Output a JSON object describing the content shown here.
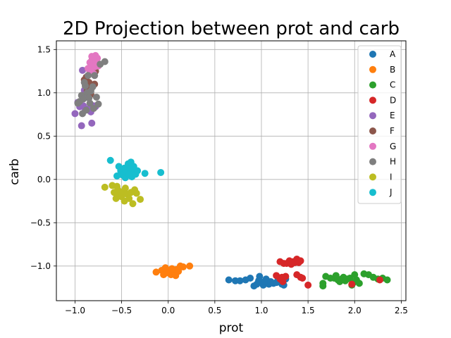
{
  "chart_data": {
    "type": "scatter",
    "title": "2D Projection between prot and carb",
    "xlabel": "prot",
    "ylabel": "carb",
    "xlim": [
      -1.2,
      2.55
    ],
    "ylim": [
      -1.4,
      1.6
    ],
    "xticks": [
      -1.0,
      -0.5,
      0.0,
      0.5,
      1.0,
      1.5,
      2.0,
      2.5
    ],
    "xtick_labels": [
      "−1.0",
      "−0.5",
      "0.0",
      "0.5",
      "1.0",
      "1.5",
      "2.0",
      "2.5"
    ],
    "yticks": [
      -1.0,
      -0.5,
      0.0,
      0.5,
      1.0,
      1.5
    ],
    "ytick_labels": [
      "−1.0",
      "−0.5",
      "0.0",
      "0.5",
      "1.0",
      "1.5"
    ],
    "grid": true,
    "legend_position": "top-right",
    "series": [
      {
        "name": "A",
        "color": "#1f77b4",
        "points": [
          [
            0.65,
            -1.16
          ],
          [
            0.72,
            -1.17
          ],
          [
            0.77,
            -1.17
          ],
          [
            0.83,
            -1.16
          ],
          [
            0.88,
            -1.14
          ],
          [
            0.92,
            -1.23
          ],
          [
            0.95,
            -1.21
          ],
          [
            0.98,
            -1.12
          ],
          [
            1.0,
            -1.19
          ],
          [
            1.02,
            -1.22
          ],
          [
            1.05,
            -1.15
          ],
          [
            1.08,
            -1.21
          ],
          [
            1.1,
            -1.18
          ],
          [
            1.13,
            -1.2
          ],
          [
            1.16,
            -1.19
          ],
          [
            1.18,
            -1.15
          ],
          [
            1.2,
            -1.17
          ],
          [
            1.22,
            -1.21
          ],
          [
            1.24,
            -1.22
          ],
          [
            1.26,
            -1.15
          ],
          [
            1.03,
            -1.18
          ],
          [
            0.97,
            -1.17
          ]
        ]
      },
      {
        "name": "B",
        "color": "#ff7f0e",
        "points": [
          [
            -0.13,
            -1.07
          ],
          [
            -0.07,
            -1.05
          ],
          [
            -0.05,
            -1.1
          ],
          [
            -0.03,
            -1.02
          ],
          [
            -0.01,
            -1.05
          ],
          [
            0.01,
            -1.07
          ],
          [
            0.03,
            -1.1
          ],
          [
            0.05,
            -1.06
          ],
          [
            0.07,
            -1.09
          ],
          [
            0.09,
            -1.04
          ],
          [
            0.11,
            -1.06
          ],
          [
            0.13,
            -1.0
          ],
          [
            0.16,
            -1.01
          ],
          [
            0.23,
            -1.0
          ],
          [
            0.04,
            -1.03
          ],
          [
            -0.02,
            -1.08
          ],
          [
            0.08,
            -1.11
          ]
        ]
      },
      {
        "name": "C",
        "color": "#2ca02c",
        "points": [
          [
            1.66,
            -1.2
          ],
          [
            1.69,
            -1.12
          ],
          [
            1.74,
            -1.14
          ],
          [
            1.78,
            -1.14
          ],
          [
            1.8,
            -1.11
          ],
          [
            1.82,
            -1.16
          ],
          [
            1.84,
            -1.18
          ],
          [
            1.86,
            -1.15
          ],
          [
            1.88,
            -1.13
          ],
          [
            1.9,
            -1.17
          ],
          [
            1.92,
            -1.15
          ],
          [
            1.95,
            -1.14
          ],
          [
            1.98,
            -1.2
          ],
          [
            2.0,
            -1.1
          ],
          [
            2.02,
            -1.16
          ],
          [
            2.05,
            -1.2
          ],
          [
            2.1,
            -1.09
          ],
          [
            2.15,
            -1.1
          ],
          [
            2.2,
            -1.13
          ],
          [
            2.25,
            -1.15
          ],
          [
            2.3,
            -1.14
          ],
          [
            2.35,
            -1.16
          ],
          [
            1.66,
            -1.23
          ],
          [
            1.97,
            -1.22
          ]
        ]
      },
      {
        "name": "D",
        "color": "#d62728",
        "points": [
          [
            1.2,
            -0.95
          ],
          [
            1.24,
            -0.97
          ],
          [
            1.27,
            -0.97
          ],
          [
            1.3,
            -0.94
          ],
          [
            1.32,
            -0.98
          ],
          [
            1.34,
            -0.95
          ],
          [
            1.36,
            -0.96
          ],
          [
            1.38,
            -0.92
          ],
          [
            1.4,
            -0.96
          ],
          [
            1.42,
            -0.94
          ],
          [
            1.16,
            -1.11
          ],
          [
            1.2,
            -1.15
          ],
          [
            1.23,
            -1.18
          ],
          [
            1.26,
            -1.12
          ],
          [
            1.38,
            -1.1
          ],
          [
            1.42,
            -1.13
          ],
          [
            1.44,
            -1.14
          ],
          [
            1.5,
            -1.22
          ],
          [
            1.97,
            -1.21
          ],
          [
            2.27,
            -1.16
          ],
          [
            1.22,
            -1.13
          ]
        ]
      },
      {
        "name": "E",
        "color": "#9467bd",
        "points": [
          [
            -1.0,
            0.76
          ],
          [
            -0.97,
            0.89
          ],
          [
            -0.95,
            0.84
          ],
          [
            -0.93,
            0.62
          ],
          [
            -0.91,
            0.85
          ],
          [
            -0.89,
            0.8
          ],
          [
            -0.87,
            0.95
          ],
          [
            -0.85,
            0.82
          ],
          [
            -0.83,
            0.78
          ],
          [
            -0.82,
            0.65
          ],
          [
            -0.8,
            0.85
          ],
          [
            -0.92,
            1.26
          ],
          [
            -0.88,
            1.1
          ],
          [
            -0.86,
            1.04
          ],
          [
            -0.84,
            1.0
          ],
          [
            -0.78,
            0.84
          ],
          [
            -0.9,
            1.03
          ]
        ]
      },
      {
        "name": "F",
        "color": "#8c564b",
        "points": [
          [
            -0.88,
            1.18
          ],
          [
            -0.86,
            1.28
          ],
          [
            -0.84,
            1.22
          ],
          [
            -0.82,
            1.37
          ],
          [
            -0.8,
            1.3
          ],
          [
            -0.78,
            1.25
          ],
          [
            -0.9,
            1.15
          ],
          [
            -0.85,
            1.12
          ],
          [
            -0.82,
            1.06
          ],
          [
            -0.79,
            1.1
          ],
          [
            -0.87,
            1.02
          ],
          [
            -0.83,
            0.98
          ]
        ]
      },
      {
        "name": "G",
        "color": "#e377c2",
        "points": [
          [
            -0.82,
            1.42
          ],
          [
            -0.8,
            1.38
          ],
          [
            -0.78,
            1.43
          ],
          [
            -0.76,
            1.4
          ],
          [
            -0.84,
            1.35
          ],
          [
            -0.81,
            1.32
          ],
          [
            -0.79,
            1.3
          ],
          [
            -0.77,
            1.35
          ],
          [
            -0.86,
            1.28
          ],
          [
            -0.83,
            1.25
          ],
          [
            -0.8,
            1.22
          ],
          [
            -0.75,
            1.31
          ]
        ]
      },
      {
        "name": "H",
        "color": "#7f7f7f",
        "points": [
          [
            -0.97,
            0.88
          ],
          [
            -0.95,
            0.9
          ],
          [
            -0.93,
            0.97
          ],
          [
            -0.91,
            0.93
          ],
          [
            -0.89,
            1.08
          ],
          [
            -0.87,
            1.0
          ],
          [
            -0.85,
            0.94
          ],
          [
            -0.83,
            1.02
          ],
          [
            -0.81,
            1.07
          ],
          [
            -0.79,
            1.2
          ],
          [
            -0.77,
            0.95
          ],
          [
            -0.75,
            0.87
          ],
          [
            -0.73,
            1.33
          ],
          [
            -0.68,
            1.36
          ],
          [
            -0.92,
            0.76
          ],
          [
            -0.88,
            0.8
          ],
          [
            -0.84,
            0.88
          ],
          [
            -0.86,
            1.2
          ],
          [
            -0.8,
            0.82
          ],
          [
            -0.9,
            1.12
          ]
        ]
      },
      {
        "name": "I",
        "color": "#bcbd22",
        "points": [
          [
            -0.68,
            -0.09
          ],
          [
            -0.6,
            -0.07
          ],
          [
            -0.58,
            -0.15
          ],
          [
            -0.56,
            -0.22
          ],
          [
            -0.54,
            -0.12
          ],
          [
            -0.52,
            -0.18
          ],
          [
            -0.5,
            -0.2
          ],
          [
            -0.48,
            -0.14
          ],
          [
            -0.46,
            -0.1
          ],
          [
            -0.44,
            -0.17
          ],
          [
            -0.42,
            -0.22
          ],
          [
            -0.4,
            -0.15
          ],
          [
            -0.38,
            -0.28
          ],
          [
            -0.36,
            -0.12
          ],
          [
            -0.34,
            -0.16
          ],
          [
            -0.3,
            -0.23
          ],
          [
            -0.55,
            -0.08
          ],
          [
            -0.47,
            -0.25
          ]
        ]
      },
      {
        "name": "J",
        "color": "#17becf",
        "points": [
          [
            -0.62,
            0.22
          ],
          [
            -0.55,
            0.04
          ],
          [
            -0.53,
            0.15
          ],
          [
            -0.51,
            0.1
          ],
          [
            -0.49,
            0.05
          ],
          [
            -0.47,
            0.13
          ],
          [
            -0.45,
            0.08
          ],
          [
            -0.43,
            0.18
          ],
          [
            -0.41,
            0.12
          ],
          [
            -0.4,
            0.2
          ],
          [
            -0.39,
            0.03
          ],
          [
            -0.37,
            0.15
          ],
          [
            -0.36,
            0.08
          ],
          [
            -0.35,
            0.06
          ],
          [
            -0.33,
            0.1
          ],
          [
            -0.25,
            0.07
          ],
          [
            -0.08,
            0.08
          ],
          [
            -0.46,
            0.02
          ],
          [
            -0.42,
            0.06
          ]
        ]
      }
    ]
  }
}
